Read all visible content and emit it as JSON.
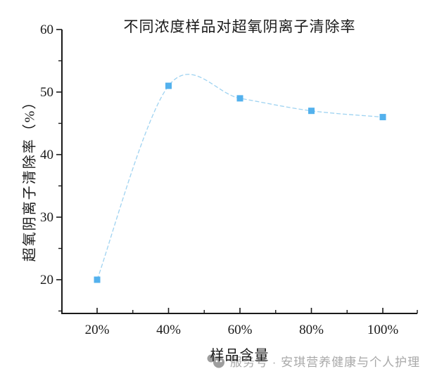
{
  "chart_data": {
    "type": "line",
    "title": "不同浓度样品对超氧阴离子清除率",
    "xlabel": "样品含量",
    "ylabel": "超氧阴离子清除率（%）",
    "categories": [
      "20%",
      "40%",
      "60%",
      "80%",
      "100%"
    ],
    "x_values": [
      20,
      40,
      60,
      80,
      100
    ],
    "values": [
      20,
      51,
      49,
      47,
      46
    ],
    "y_ticks": [
      20,
      30,
      40,
      50,
      60
    ],
    "y_minor_ticks": [
      15,
      25,
      35,
      45,
      55
    ],
    "x_minor_ticks": [
      30,
      50,
      70,
      90,
      110
    ],
    "xlim": [
      10,
      110
    ],
    "ylim": [
      14.5,
      60
    ],
    "grid": false,
    "legend": false,
    "line_style": "smooth-spline-dashed",
    "line_color": "#9fd3f1",
    "marker": "square",
    "marker_color": "#53b1ed",
    "axis_color": "#1a1a1a"
  },
  "watermark": {
    "text": "服务号 · 安琪营养健康与个人护理",
    "icon": "wechat-service-account-logo",
    "color": "#a9a9a9"
  }
}
